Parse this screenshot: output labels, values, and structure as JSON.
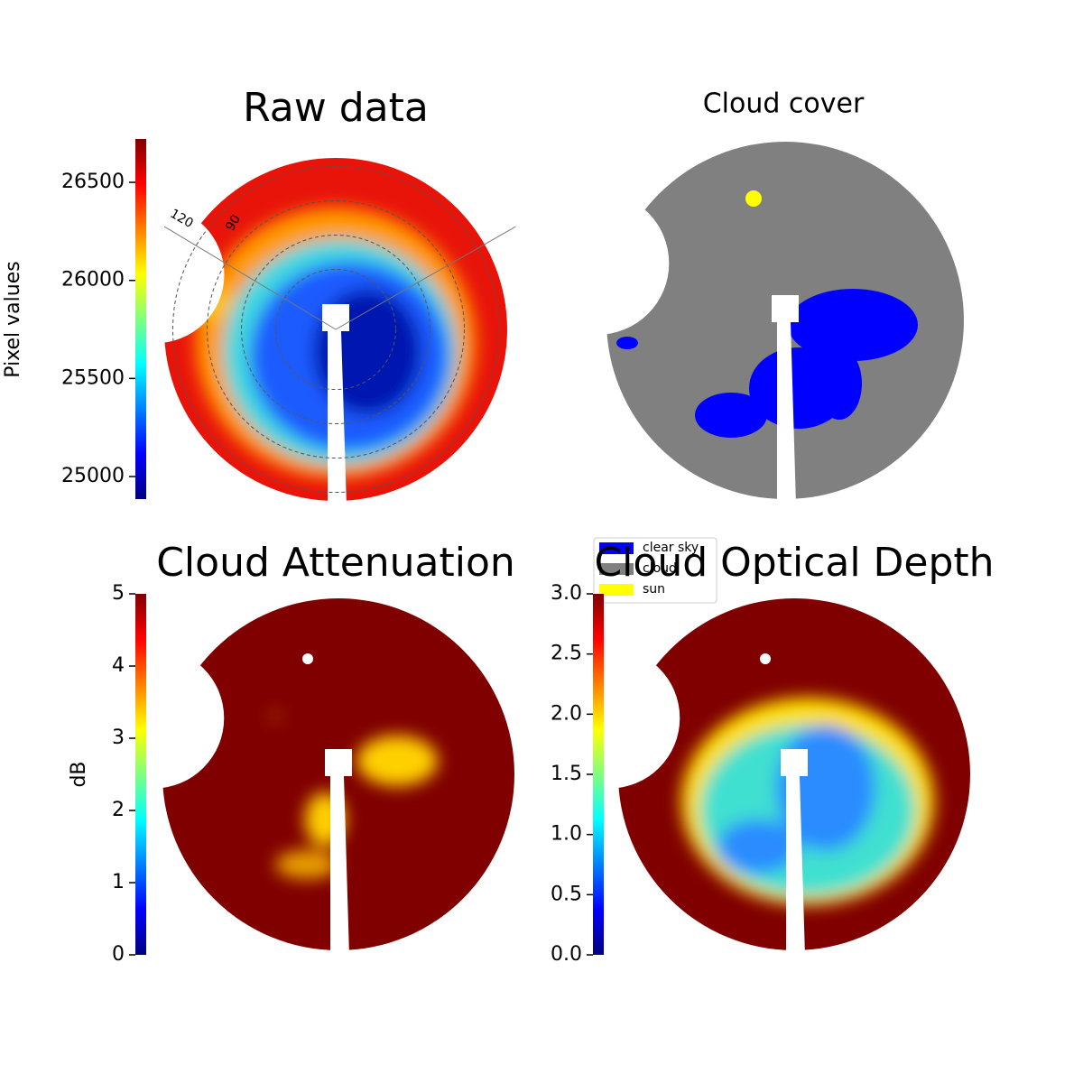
{
  "chart_data": [
    {
      "type": "heatmap",
      "title": "Raw data",
      "colorbar_label": "Pixel values",
      "colormap": "jet",
      "ylim": [
        24885,
        26721
      ],
      "yticks": [
        25000,
        25500,
        26000,
        26500
      ],
      "polar_labels": [
        "120",
        "90"
      ]
    },
    {
      "type": "categorical",
      "title": "Cloud cover",
      "series": [
        {
          "name": "clear sky",
          "color": "#0000ff"
        },
        {
          "name": "cloud",
          "color": "#808080"
        },
        {
          "name": "sun",
          "color": "#ffff00"
        }
      ]
    },
    {
      "type": "heatmap",
      "title": "Cloud Attenuation",
      "colorbar_label": "dB",
      "colormap": "jet",
      "ylim": [
        0,
        5
      ],
      "yticks": [
        0,
        1,
        2,
        3,
        4,
        5
      ]
    },
    {
      "type": "heatmap",
      "title": "Cloud Optical Depth",
      "colormap": "jet",
      "ylim": [
        0,
        3
      ],
      "yticks": [
        {
          "value": 0,
          "label": "0.0"
        },
        {
          "value": 0.5,
          "label": "0.5"
        },
        {
          "value": 1,
          "label": "1.0"
        },
        {
          "value": 1.5,
          "label": "1.5"
        },
        {
          "value": 2,
          "label": "2.0"
        },
        {
          "value": 2.5,
          "label": "2.5"
        },
        {
          "value": 3,
          "label": "3.0"
        }
      ]
    }
  ]
}
